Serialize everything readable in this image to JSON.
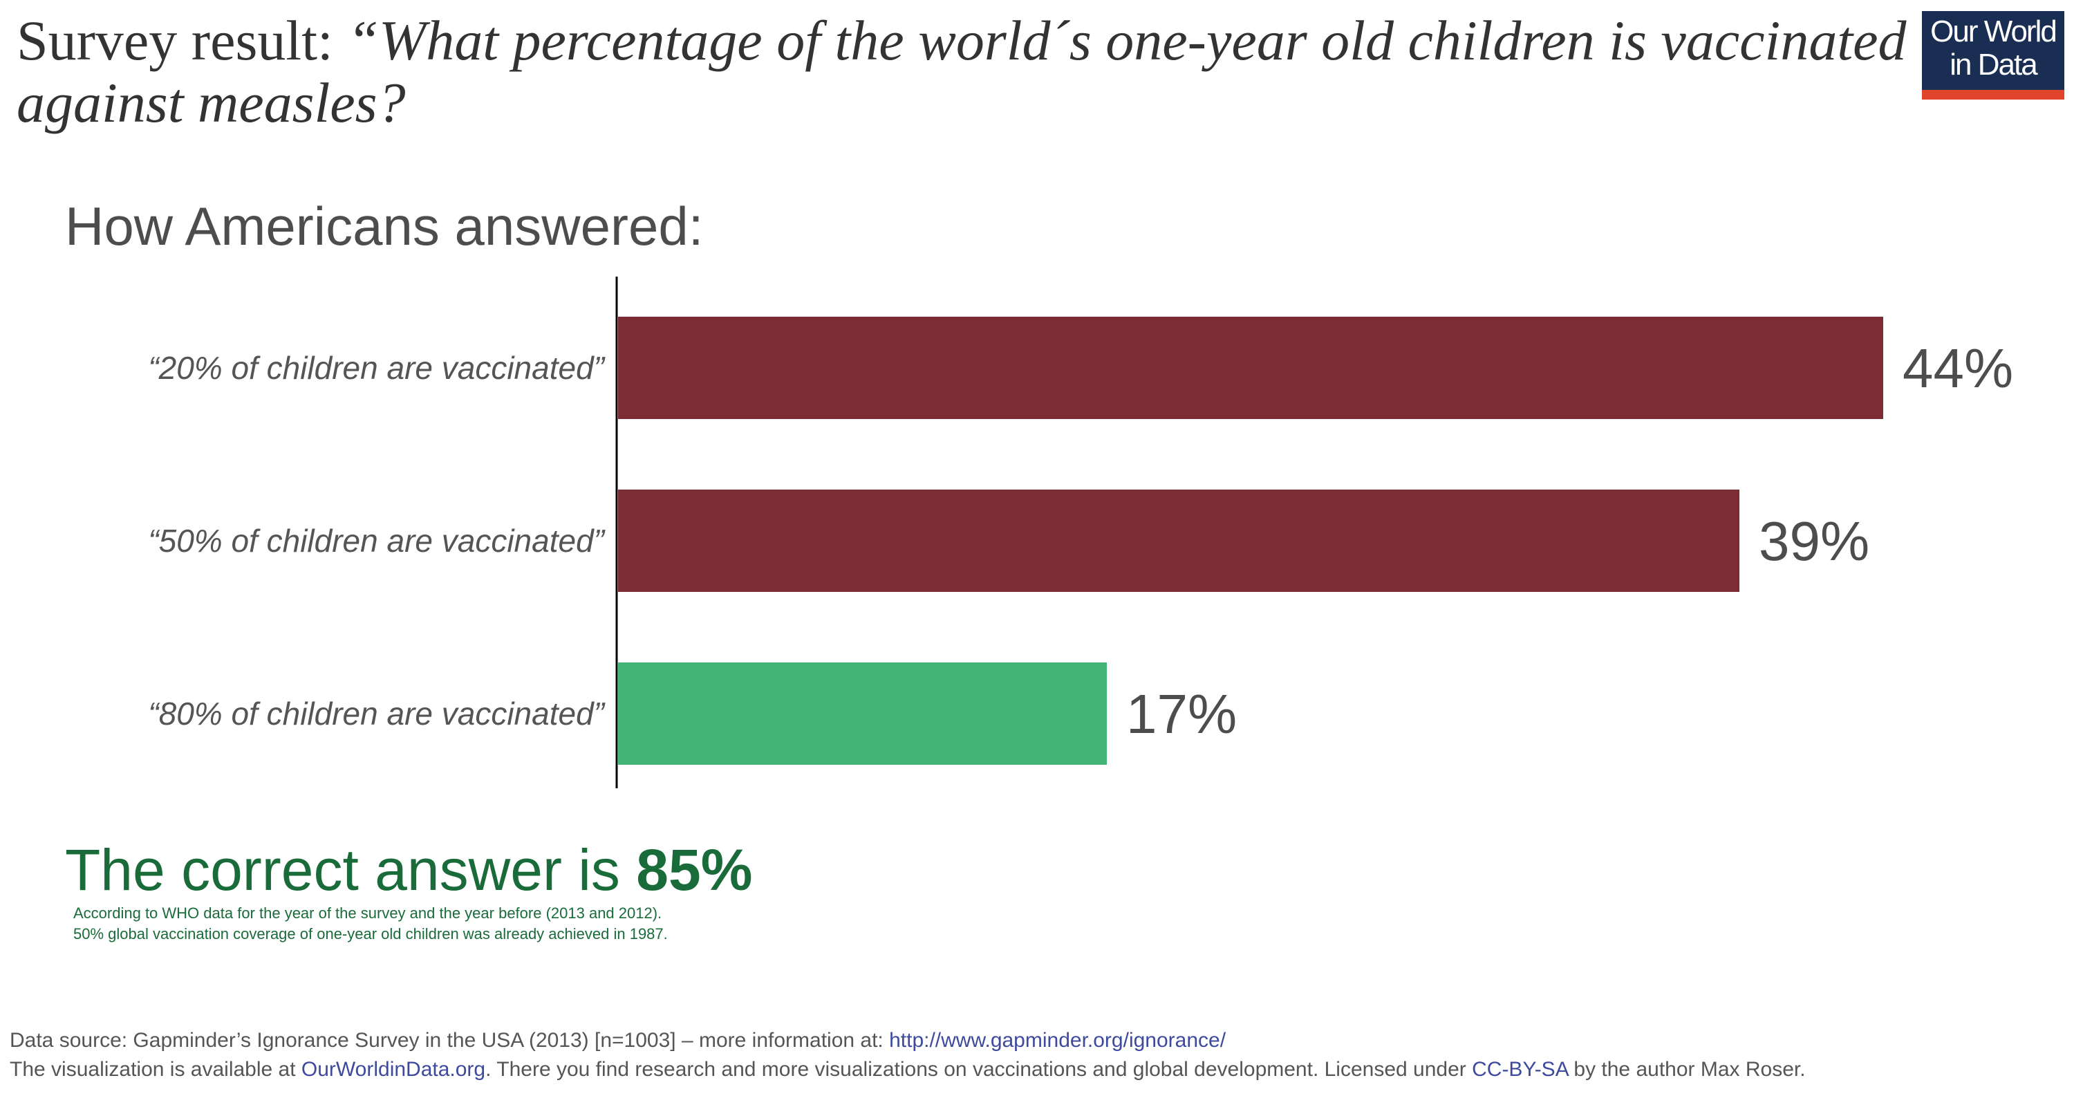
{
  "title": {
    "prefix": "Survey result: ",
    "question": "“What percentage of the world´s one-year old children is vaccinated against measles?"
  },
  "logo": {
    "line1": "Our World",
    "line2": "in Data"
  },
  "subtitle": "How Americans answered:",
  "chart_data": {
    "type": "bar",
    "orientation": "horizontal",
    "categories": [
      "“20% of children are vaccinated”",
      "“50% of children are vaccinated”",
      "“80% of children are vaccinated”"
    ],
    "values": [
      44,
      39,
      17
    ],
    "value_labels": [
      "44%",
      "39%",
      "17%"
    ],
    "colors": [
      "#7b2c34",
      "#7b2c34",
      "#44b477"
    ],
    "xlim": [
      0,
      44
    ],
    "grid": false
  },
  "correct_answer": {
    "text": "The correct answer is ",
    "value": "85%"
  },
  "notes": [
    "According to WHO data for the year of the survey and the year before (2013 and 2012).",
    "50% global vaccination coverage of one-year old children was already achieved in 1987."
  ],
  "footer": {
    "line1_text": "Data source: Gapminder’s Ignorance Survey in the USA (2013) [n=1003] – more information at: ",
    "line1_link": "http://www.gapminder.org/ignorance/",
    "line2_pre": "The visualization is available at ",
    "line2_link1": "OurWorldinData.org",
    "line2_mid": ". There you find research and more visualizations on vaccinations and global development.  Licensed under ",
    "line2_link2": "CC-BY-SA",
    "line2_post": " by the author Max Roser."
  }
}
